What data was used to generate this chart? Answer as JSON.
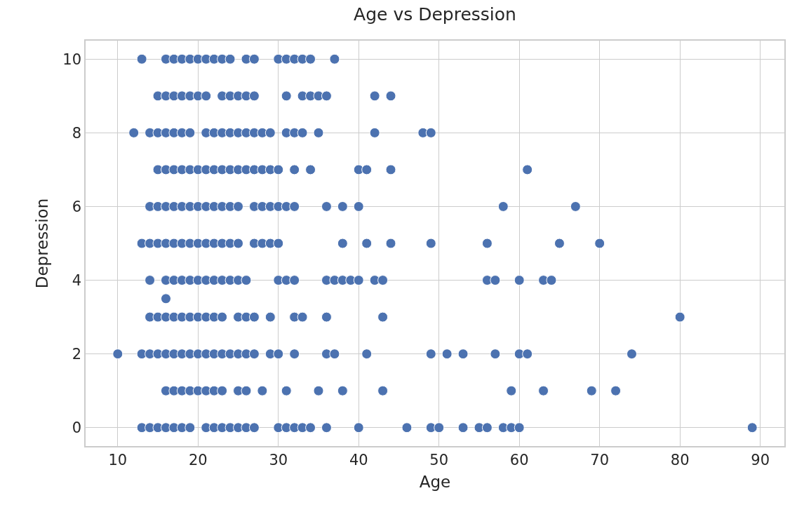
{
  "chart_data": {
    "type": "scatter",
    "title": "Age vs Depression",
    "xlabel": "Age",
    "ylabel": "Depression",
    "xlim": [
      6,
      93
    ],
    "xticks": [
      10,
      20,
      30,
      40,
      50,
      60,
      70,
      80,
      90
    ],
    "ylim": [
      -0.5,
      10.5
    ],
    "yticks": [
      0,
      2,
      4,
      6,
      8,
      10
    ],
    "grid": true,
    "marker": "circle",
    "series": [
      {
        "color": "#4c72b0",
        "x": [
          13,
          16,
          17,
          18,
          19,
          20,
          21,
          22,
          23,
          24,
          26,
          27,
          30,
          31,
          32,
          33,
          34,
          37
        ],
        "values": [
          10,
          10,
          10,
          10,
          10,
          10,
          10,
          10,
          10,
          10,
          10,
          10,
          10,
          10,
          10,
          10,
          10,
          10
        ]
      },
      {
        "color": "#4c72b0",
        "x": [
          15,
          16,
          17,
          18,
          19,
          20,
          21,
          23,
          24,
          25,
          26,
          27,
          31,
          33,
          34,
          35,
          36,
          42,
          44
        ],
        "values": [
          9,
          9,
          9,
          9,
          9,
          9,
          9,
          9,
          9,
          9,
          9,
          9,
          9,
          9,
          9,
          9,
          9,
          9,
          9
        ]
      },
      {
        "color": "#4c72b0",
        "x": [
          12,
          14,
          15,
          16,
          17,
          18,
          19,
          21,
          22,
          23,
          24,
          25,
          26,
          27,
          28,
          29,
          31,
          32,
          33,
          35,
          42,
          48,
          49
        ],
        "values": [
          8,
          8,
          8,
          8,
          8,
          8,
          8,
          8,
          8,
          8,
          8,
          8,
          8,
          8,
          8,
          8,
          8,
          8,
          8,
          8,
          8,
          8,
          8
        ]
      },
      {
        "color": "#4c72b0",
        "x": [
          15,
          16,
          17,
          18,
          19,
          20,
          21,
          22,
          23,
          24,
          25,
          26,
          27,
          28,
          29,
          30,
          32,
          34,
          40,
          41,
          44,
          61
        ],
        "values": [
          7,
          7,
          7,
          7,
          7,
          7,
          7,
          7,
          7,
          7,
          7,
          7,
          7,
          7,
          7,
          7,
          7,
          7,
          7,
          7,
          7,
          7
        ]
      },
      {
        "color": "#4c72b0",
        "x": [
          14,
          15,
          16,
          17,
          18,
          19,
          20,
          21,
          22,
          23,
          24,
          25,
          27,
          28,
          29,
          30,
          31,
          32,
          36,
          38,
          40,
          58,
          67
        ],
        "values": [
          6,
          6,
          6,
          6,
          6,
          6,
          6,
          6,
          6,
          6,
          6,
          6,
          6,
          6,
          6,
          6,
          6,
          6,
          6,
          6,
          6,
          6,
          6
        ]
      },
      {
        "color": "#4c72b0",
        "x": [
          13,
          14,
          15,
          16,
          17,
          18,
          19,
          20,
          21,
          22,
          23,
          24,
          25,
          27,
          28,
          29,
          30,
          38,
          41,
          44,
          49,
          56,
          65,
          70
        ],
        "values": [
          5,
          5,
          5,
          5,
          5,
          5,
          5,
          5,
          5,
          5,
          5,
          5,
          5,
          5,
          5,
          5,
          5,
          5,
          5,
          5,
          5,
          5,
          5,
          5
        ]
      },
      {
        "color": "#4c72b0",
        "x": [
          14,
          16,
          17,
          18,
          19,
          20,
          21,
          22,
          23,
          24,
          25,
          26,
          30,
          31,
          32,
          36,
          37,
          38,
          39,
          40,
          42,
          43,
          56,
          57,
          60,
          63,
          64
        ],
        "values": [
          4,
          4,
          4,
          4,
          4,
          4,
          4,
          4,
          4,
          4,
          4,
          4,
          4,
          4,
          4,
          4,
          4,
          4,
          4,
          4,
          4,
          4,
          4,
          4,
          4,
          4,
          4
        ]
      },
      {
        "color": "#4c72b0",
        "x": [
          16
        ],
        "values": [
          3.5
        ]
      },
      {
        "color": "#4c72b0",
        "x": [
          14,
          15,
          16,
          17,
          18,
          19,
          20,
          21,
          22,
          23,
          25,
          26,
          27,
          29,
          32,
          33,
          36,
          43,
          80
        ],
        "values": [
          3,
          3,
          3,
          3,
          3,
          3,
          3,
          3,
          3,
          3,
          3,
          3,
          3,
          3,
          3,
          3,
          3,
          3,
          3
        ]
      },
      {
        "color": "#4c72b0",
        "x": [
          10,
          13,
          14,
          15,
          16,
          17,
          18,
          19,
          20,
          21,
          22,
          23,
          24,
          25,
          26,
          27,
          29,
          30,
          32,
          36,
          37,
          41,
          49,
          51,
          53,
          57,
          60,
          61,
          74
        ],
        "values": [
          2,
          2,
          2,
          2,
          2,
          2,
          2,
          2,
          2,
          2,
          2,
          2,
          2,
          2,
          2,
          2,
          2,
          2,
          2,
          2,
          2,
          2,
          2,
          2,
          2,
          2,
          2,
          2,
          2
        ]
      },
      {
        "color": "#4c72b0",
        "x": [
          16,
          17,
          18,
          19,
          20,
          21,
          22,
          23,
          25,
          26,
          28,
          31,
          35,
          38,
          43,
          59,
          63,
          69,
          72
        ],
        "values": [
          1,
          1,
          1,
          1,
          1,
          1,
          1,
          1,
          1,
          1,
          1,
          1,
          1,
          1,
          1,
          1,
          1,
          1,
          1
        ]
      },
      {
        "color": "#4c72b0",
        "x": [
          13,
          14,
          15,
          16,
          17,
          18,
          19,
          21,
          22,
          23,
          24,
          25,
          26,
          27,
          30,
          31,
          32,
          33,
          34,
          36,
          40,
          46,
          49,
          50,
          53,
          55,
          56,
          58,
          59,
          60,
          89
        ],
        "values": [
          0,
          0,
          0,
          0,
          0,
          0,
          0,
          0,
          0,
          0,
          0,
          0,
          0,
          0,
          0,
          0,
          0,
          0,
          0,
          0,
          0,
          0,
          0,
          0,
          0,
          0,
          0,
          0,
          0,
          0,
          0
        ]
      }
    ]
  }
}
